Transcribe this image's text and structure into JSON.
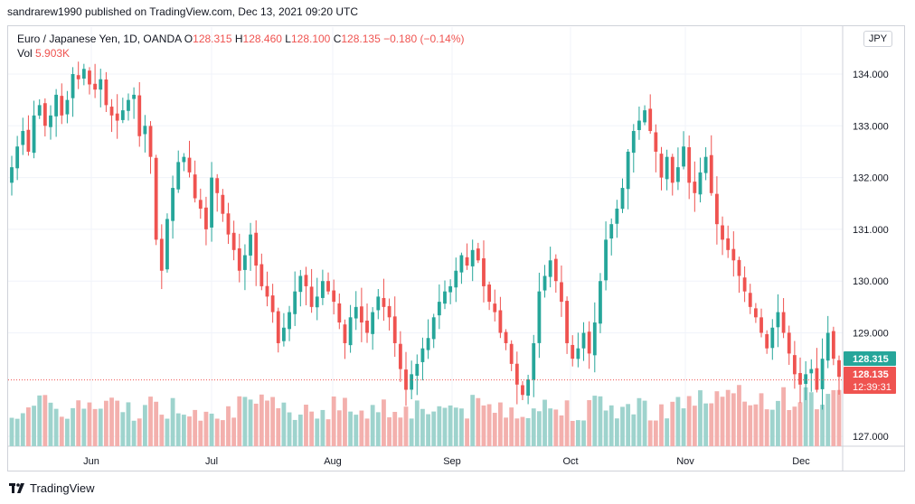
{
  "header": {
    "publisher": "sandrarew1990 published on TradingView.com, Dec 13, 2021 09:20 UTC"
  },
  "legend": {
    "symbol": "Euro / Japanese Yen, 1D, OANDA",
    "o_label": "O",
    "o_value": "128.315",
    "h_label": "H",
    "h_value": "128.460",
    "l_label": "L",
    "l_value": "128.100",
    "c_label": "C",
    "c_value": "128.135",
    "change": "−0.180 (−0.14%)",
    "vol_label": "Vol",
    "vol_value": "5.903K"
  },
  "currency_button": "JPY",
  "footer": {
    "brand": "TradingView"
  },
  "price_badges": {
    "open_badge": "128.315",
    "last_badge": "128.135",
    "countdown": "12:39:31"
  },
  "colors": {
    "up": "#26a69a",
    "down": "#ef5350",
    "up_vol": "#9ed3cd",
    "down_vol": "#f3b0ad"
  },
  "chart_data": {
    "type": "candlestick",
    "title": "Euro / Japanese Yen, 1D, OANDA",
    "y_ticks": [
      "134.000",
      "133.000",
      "132.000",
      "131.000",
      "130.000",
      "129.000",
      "127.000"
    ],
    "x_ticks": [
      "Jun",
      "Jul",
      "Aug",
      "Sep",
      "Oct",
      "Nov",
      "Dec"
    ],
    "grid": true,
    "close": [
      132.2,
      132.6,
      132.9,
      132.5,
      133.2,
      133.4,
      133.0,
      133.2,
      133.6,
      133.2,
      133.5,
      134.0,
      133.9,
      134.1,
      133.8,
      133.7,
      133.9,
      133.4,
      133.2,
      133.1,
      133.3,
      133.5,
      133.6,
      132.8,
      133.0,
      132.4,
      130.8,
      130.2,
      131.2,
      131.8,
      132.3,
      132.4,
      132.1,
      131.6,
      131.4,
      131.0,
      132.0,
      131.7,
      131.3,
      130.9,
      130.6,
      130.2,
      130.5,
      130.9,
      130.3,
      129.9,
      129.7,
      129.4,
      128.8,
      129.1,
      129.4,
      129.8,
      130.1,
      129.9,
      129.5,
      129.7,
      130.0,
      129.8,
      129.6,
      129.2,
      128.8,
      129.3,
      129.5,
      129.2,
      129.0,
      129.4,
      129.7,
      129.5,
      129.3,
      128.8,
      128.3,
      127.9,
      128.2,
      128.4,
      128.7,
      128.9,
      129.3,
      129.6,
      129.8,
      129.9,
      130.2,
      130.5,
      130.3,
      130.6,
      130.4,
      129.9,
      129.6,
      129.4,
      129.0,
      128.8,
      128.4,
      128.0,
      127.8,
      128.1,
      128.8,
      129.8,
      130.1,
      130.4,
      130.0,
      129.6,
      128.8,
      128.5,
      128.7,
      129.0,
      128.6,
      129.2,
      130.0,
      130.8,
      131.1,
      131.4,
      131.8,
      132.5,
      132.9,
      133.1,
      133.3,
      132.9,
      132.5,
      132.0,
      132.4,
      131.9,
      132.2,
      132.6,
      131.9,
      131.7,
      132.1,
      132.4,
      131.7,
      131.1,
      130.8,
      130.6,
      130.4,
      130.1,
      129.8,
      129.5,
      129.3,
      129.0,
      128.7,
      129.1,
      129.4,
      129.0,
      128.6,
      128.2,
      128.0,
      128.2,
      128.3,
      127.9,
      128.5,
      129.0,
      128.5,
      128.15
    ]
  }
}
